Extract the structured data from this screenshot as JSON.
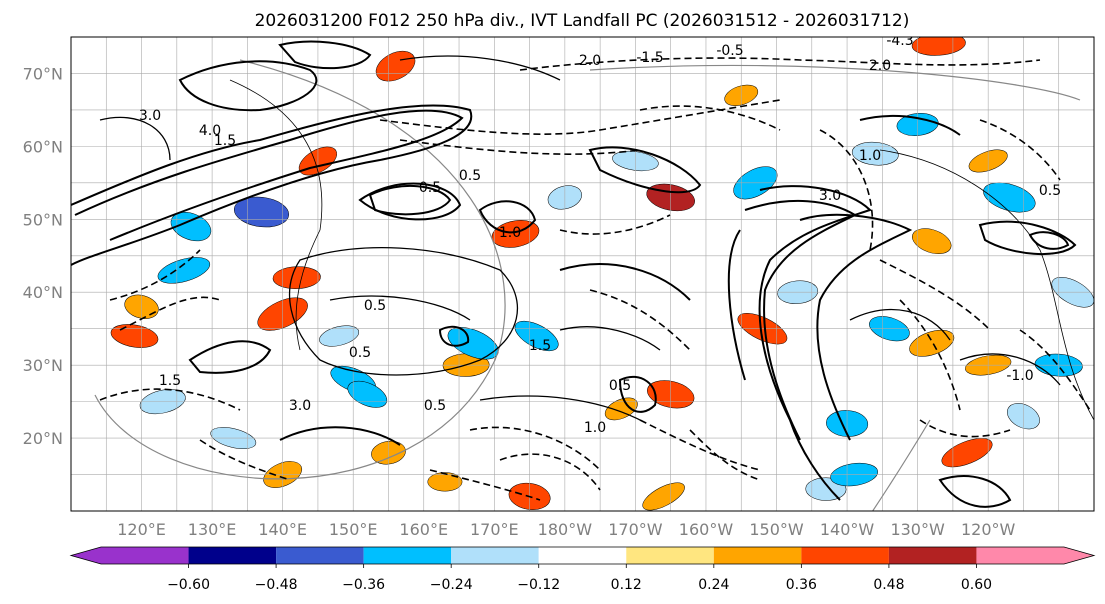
{
  "title": "2026031200 F012 250 hPa div., IVT Landfall PC (2026031512 - 2026031712)",
  "map": {
    "projection": "equirectangular",
    "lon_range_east": [
      110,
      255
    ],
    "lat_range": [
      10,
      75
    ],
    "graticule_step_deg": 5,
    "lat_labels": [
      "70°N",
      "60°N",
      "50°N",
      "40°N",
      "30°N",
      "20°N"
    ],
    "lat_values": [
      70,
      60,
      50,
      40,
      30,
      20
    ],
    "lon_labels": [
      "120°E",
      "130°E",
      "140°E",
      "150°E",
      "160°E",
      "170°E",
      "180°W",
      "170°W",
      "160°W",
      "150°W",
      "140°W",
      "130°W",
      "120°W"
    ],
    "lon_values_east": [
      120,
      130,
      140,
      150,
      160,
      170,
      180,
      190,
      200,
      210,
      220,
      230,
      240
    ],
    "contour_labels": [
      "3.0",
      "1.5",
      "0.5",
      "4.0",
      "2.0",
      "0.5",
      "1.0",
      "0.5",
      "1.5",
      "3.0",
      "0.5",
      "0.5",
      "1.0",
      "0.5",
      "1.5",
      "3.0",
      "2.0",
      "1.0",
      "0.5",
      "-1.5",
      "-0.5",
      "-4.3",
      "-1.0"
    ]
  },
  "colorbar": {
    "tick_labels": [
      "−0.60",
      "−0.48",
      "−0.36",
      "−0.24",
      "−0.12",
      "0.12",
      "0.24",
      "0.36",
      "0.48",
      "0.60"
    ],
    "tick_values": [
      -0.6,
      -0.48,
      -0.36,
      -0.24,
      -0.12,
      0.12,
      0.24,
      0.36,
      0.48,
      0.6
    ],
    "colors": [
      "#9932cc",
      "#00008b",
      "#3a5bd0",
      "#00bfff",
      "#b0e0fa",
      "#ffffff",
      "#ffe680",
      "#ffa500",
      "#ff4500",
      "#b22222",
      "#ff88aa"
    ],
    "extend": "both"
  },
  "shading": [
    {
      "lon": 145,
      "lat": 58,
      "value": 0.36
    },
    {
      "lon": 137,
      "lat": 51,
      "value": -0.48
    },
    {
      "lon": 126,
      "lat": 43,
      "value": -0.36
    },
    {
      "lon": 127,
      "lat": 49,
      "value": -0.36
    },
    {
      "lon": 142,
      "lat": 42,
      "value": 0.36
    },
    {
      "lon": 140,
      "lat": 37,
      "value": 0.36
    },
    {
      "lon": 195,
      "lat": 53,
      "value": 0.48
    },
    {
      "lon": 173,
      "lat": 48,
      "value": 0.36
    },
    {
      "lon": 208,
      "lat": 35,
      "value": 0.36
    },
    {
      "lon": 220,
      "lat": 22,
      "value": -0.36
    },
    {
      "lon": 240,
      "lat": 58,
      "value": 0.24
    },
    {
      "lon": 243,
      "lat": 53,
      "value": -0.36
    },
    {
      "lon": 230,
      "lat": 63,
      "value": -0.36
    },
    {
      "lon": 207,
      "lat": 55,
      "value": -0.36
    },
    {
      "lon": 190,
      "lat": 58,
      "value": -0.24
    },
    {
      "lon": 180,
      "lat": 53,
      "value": -0.24
    },
    {
      "lon": 150,
      "lat": 28,
      "value": -0.36
    },
    {
      "lon": 166,
      "lat": 30,
      "value": 0.24
    },
    {
      "lon": 188,
      "lat": 24,
      "value": 0.24
    },
    {
      "lon": 195,
      "lat": 26,
      "value": 0.36
    },
    {
      "lon": 240,
      "lat": 30,
      "value": 0.24
    },
    {
      "lon": 245,
      "lat": 23,
      "value": -0.24
    },
    {
      "lon": 250,
      "lat": 30,
      "value": -0.36
    },
    {
      "lon": 232,
      "lat": 33,
      "value": 0.24
    },
    {
      "lon": 226,
      "lat": 35,
      "value": -0.36
    },
    {
      "lon": 213,
      "lat": 40,
      "value": -0.24
    },
    {
      "lon": 194,
      "lat": 12,
      "value": 0.24
    },
    {
      "lon": 175,
      "lat": 12,
      "value": 0.36
    },
    {
      "lon": 148,
      "lat": 34,
      "value": -0.24
    },
    {
      "lon": 167,
      "lat": 33,
      "value": -0.36
    },
    {
      "lon": 163,
      "lat": 14,
      "value": 0.24
    },
    {
      "lon": 140,
      "lat": 15,
      "value": 0.24
    },
    {
      "lon": 133,
      "lat": 20,
      "value": -0.24
    },
    {
      "lon": 155,
      "lat": 18,
      "value": 0.24
    },
    {
      "lon": 176,
      "lat": 34,
      "value": -0.36
    },
    {
      "lon": 224,
      "lat": 59,
      "value": -0.24
    },
    {
      "lon": 205,
      "lat": 67,
      "value": 0.24
    },
    {
      "lon": 232,
      "lat": 47,
      "value": 0.24
    },
    {
      "lon": 233,
      "lat": 74,
      "value": 0.36
    },
    {
      "lon": 156,
      "lat": 71,
      "value": 0.36
    },
    {
      "lon": 119,
      "lat": 34,
      "value": 0.36
    },
    {
      "lon": 123,
      "lat": 25,
      "value": -0.24
    },
    {
      "lon": 152,
      "lat": 26,
      "value": -0.36
    },
    {
      "lon": 217,
      "lat": 13,
      "value": -0.24
    },
    {
      "lon": 237,
      "lat": 18,
      "value": 0.36
    },
    {
      "lon": 120,
      "lat": 38,
      "value": 0.24
    },
    {
      "lon": 221,
      "lat": 15,
      "value": -0.36
    },
    {
      "lon": 252,
      "lat": 40,
      "value": -0.24
    }
  ]
}
